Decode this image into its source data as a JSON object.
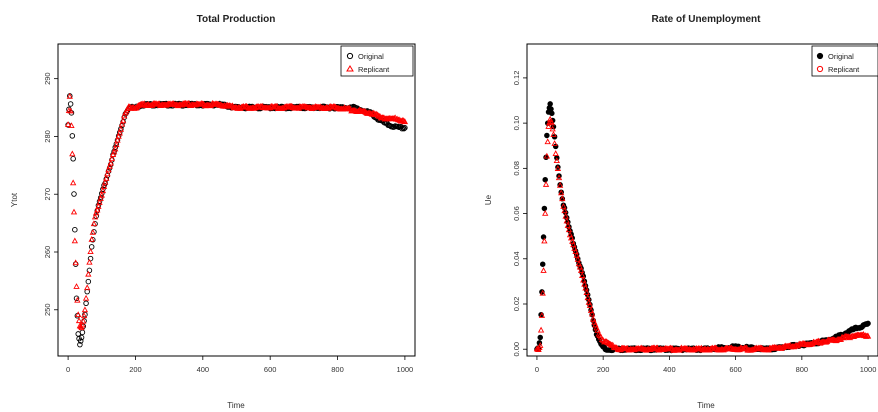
{
  "chart_data": [
    {
      "type": "scatter",
      "title": "Total Production",
      "xlabel": "Time",
      "ylabel": "Ytot",
      "xlim": [
        -30,
        1030
      ],
      "ylim": [
        242,
        296
      ],
      "xticks": [
        "0",
        "200",
        "400",
        "600",
        "800",
        "1000"
      ],
      "yticks": [
        "250",
        "260",
        "270",
        "280",
        "290"
      ],
      "legend_position": "top-right",
      "series": [
        {
          "name": "Original",
          "color": "#000000",
          "marker": "circle",
          "x": [
            0,
            5,
            10,
            15,
            20,
            25,
            30,
            35,
            40,
            45,
            50,
            60,
            70,
            80,
            90,
            100,
            110,
            120,
            130,
            140,
            150,
            160,
            170,
            180,
            190,
            200,
            220,
            250,
            300,
            350,
            400,
            450,
            500,
            550,
            600,
            650,
            700,
            750,
            800,
            850,
            900,
            920,
            950,
            980,
            1000
          ],
          "y": [
            282,
            287,
            284,
            276,
            264,
            252,
            246,
            244,
            245,
            247,
            249,
            255,
            261,
            265,
            268,
            270,
            272,
            274,
            276,
            278,
            280,
            282,
            284,
            285,
            285,
            285,
            285.5,
            285.5,
            285.5,
            285.5,
            285.5,
            285.5,
            285,
            285,
            285,
            285,
            285,
            285,
            285,
            285,
            284,
            283,
            282,
            281.5,
            281.5
          ]
        },
        {
          "name": "Replicant",
          "color": "#ff0000",
          "marker": "triangle",
          "x": [
            0,
            5,
            10,
            15,
            20,
            25,
            30,
            35,
            40,
            45,
            50,
            60,
            70,
            80,
            90,
            100,
            110,
            120,
            130,
            140,
            150,
            160,
            170,
            180,
            190,
            200,
            220,
            250,
            300,
            350,
            400,
            450,
            500,
            550,
            600,
            650,
            700,
            750,
            800,
            850,
            900,
            920,
            950,
            980,
            1000
          ],
          "y": [
            282,
            287,
            282,
            272,
            262,
            254,
            249,
            247,
            247,
            248,
            250,
            256,
            262,
            266,
            268,
            270,
            272,
            274,
            276,
            278,
            280,
            282,
            284,
            285,
            285,
            285,
            285.5,
            285.5,
            285.5,
            285.5,
            285.5,
            285.5,
            285,
            285,
            285,
            285,
            285,
            285,
            285,
            284.5,
            284,
            283.5,
            283,
            283,
            282.5
          ]
        }
      ]
    },
    {
      "type": "scatter",
      "title": "Rate of Unemployment",
      "xlabel": "Time",
      "ylabel": "Ue",
      "xlim": [
        -30,
        1030
      ],
      "ylim": [
        -0.003,
        0.135
      ],
      "xticks": [
        "0",
        "200",
        "400",
        "600",
        "800",
        "1000"
      ],
      "yticks": [
        "0.00",
        "0.02",
        "0.04",
        "0.06",
        "0.08",
        "0.10",
        "0.12"
      ],
      "legend_position": "top-right",
      "series": [
        {
          "name": "Original",
          "color": "#000000",
          "marker": "circle",
          "x": [
            0,
            5,
            10,
            15,
            20,
            25,
            30,
            35,
            40,
            45,
            50,
            60,
            70,
            80,
            90,
            100,
            110,
            120,
            130,
            140,
            150,
            160,
            170,
            180,
            190,
            200,
            210,
            220,
            250,
            300,
            400,
            500,
            600,
            700,
            750,
            800,
            850,
            900,
            930,
            960,
            980,
            1000
          ],
          "y": [
            0,
            0,
            0.005,
            0.025,
            0.05,
            0.075,
            0.095,
            0.105,
            0.108,
            0.104,
            0.098,
            0.085,
            0.073,
            0.064,
            0.058,
            0.052,
            0.047,
            0.042,
            0.037,
            0.032,
            0.026,
            0.02,
            0.013,
            0.007,
            0.003,
            0.001,
            0,
            0,
            0,
            0,
            0,
            0,
            0.001,
            0,
            0.001,
            0.002,
            0.003,
            0.005,
            0.007,
            0.009,
            0.01,
            0.011
          ]
        },
        {
          "name": "Replicant",
          "color": "#ff0000",
          "marker": "triangle",
          "x": [
            0,
            5,
            10,
            15,
            20,
            25,
            30,
            35,
            40,
            45,
            50,
            60,
            70,
            80,
            90,
            100,
            110,
            120,
            130,
            140,
            150,
            160,
            170,
            180,
            190,
            200,
            210,
            220,
            250,
            300,
            400,
            500,
            600,
            700,
            750,
            800,
            850,
            900,
            930,
            960,
            980,
            1000
          ],
          "y": [
            0,
            0,
            0.002,
            0.015,
            0.035,
            0.06,
            0.085,
            0.098,
            0.102,
            0.1,
            0.095,
            0.083,
            0.072,
            0.063,
            0.057,
            0.051,
            0.046,
            0.041,
            0.036,
            0.031,
            0.025,
            0.019,
            0.013,
            0.009,
            0.006,
            0.004,
            0.003,
            0.002,
            0,
            0,
            0,
            0,
            0,
            0,
            0.001,
            0.002,
            0.003,
            0.004,
            0.005,
            0.006,
            0.006,
            0.006
          ]
        }
      ]
    }
  ]
}
